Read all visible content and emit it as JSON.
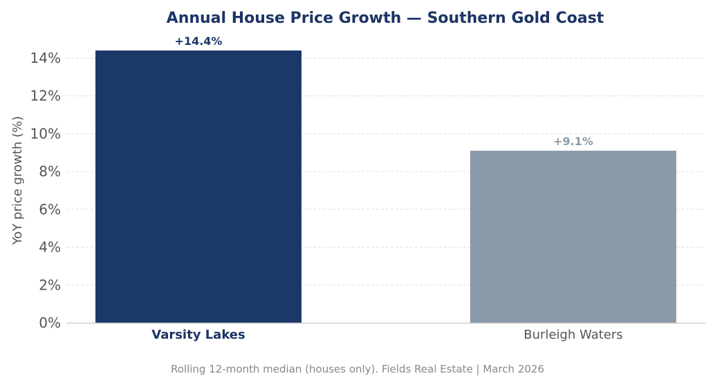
{
  "chart_data": {
    "type": "bar",
    "title": "Annual House Price Growth — Southern Gold Coast",
    "ylabel": "YoY price growth (%)",
    "xlabel": "",
    "categories": [
      "Varsity Lakes",
      "Burleigh Waters"
    ],
    "values": [
      14.4,
      9.1
    ],
    "data_labels": [
      "+14.4%",
      "+9.1%"
    ],
    "bar_colors": [
      "#1c3869",
      "#8a9aa8"
    ],
    "highlighted_category": "Varsity Lakes",
    "yticks": [
      0,
      2,
      4,
      6,
      8,
      10,
      12,
      14
    ],
    "ytick_labels": [
      "0%",
      "2%",
      "4%",
      "6%",
      "8%",
      "10%",
      "12%",
      "14%"
    ],
    "ylim": [
      0,
      15
    ],
    "grid": true,
    "footnote": "Rolling 12-month median (houses only). Fields Real Estate | March 2026",
    "colors": {
      "title": "#1c3466",
      "axis_text": "#555555",
      "footnote": "#888888",
      "grid": "#dddddd"
    }
  }
}
